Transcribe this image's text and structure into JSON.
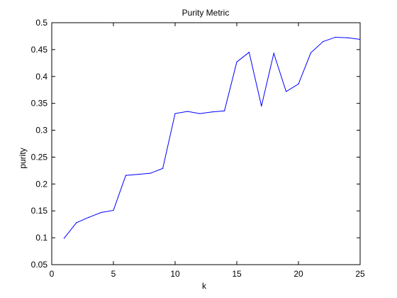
{
  "chart_data": {
    "type": "line",
    "title": "Purity Metric",
    "xlabel": "k",
    "ylabel": "purity",
    "xlim": [
      0,
      25
    ],
    "ylim": [
      0.05,
      0.5
    ],
    "xticks": [
      0,
      5,
      10,
      15,
      20,
      25
    ],
    "yticks": [
      0.05,
      0.1,
      0.15,
      0.2,
      0.25,
      0.3,
      0.35,
      0.4,
      0.45,
      0.5
    ],
    "xtick_labels": [
      "0",
      "5",
      "10",
      "15",
      "20",
      "25"
    ],
    "ytick_labels": [
      "0.05",
      "0.1",
      "0.15",
      "0.2",
      "0.25",
      "0.3",
      "0.35",
      "0.4",
      "0.45",
      "0.5"
    ],
    "grid": false,
    "line_color": "#0000ff",
    "x": [
      1,
      2,
      3,
      4,
      5,
      6,
      7,
      8,
      9,
      10,
      11,
      12,
      13,
      14,
      15,
      16,
      17,
      18,
      19,
      20,
      21,
      22,
      23,
      24,
      25
    ],
    "y": [
      0.099,
      0.128,
      0.138,
      0.147,
      0.151,
      0.216,
      0.218,
      0.22,
      0.229,
      0.331,
      0.335,
      0.331,
      0.334,
      0.336,
      0.427,
      0.445,
      0.345,
      0.443,
      0.372,
      0.386,
      0.444,
      0.465,
      0.473,
      0.472,
      0.469
    ]
  }
}
